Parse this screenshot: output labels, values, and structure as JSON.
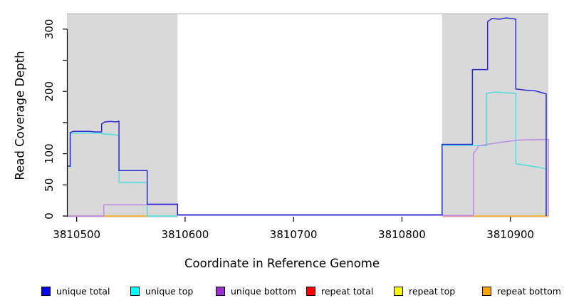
{
  "chart_data": {
    "type": "line",
    "title": "",
    "xlabel": "Coordinate in Reference Genome",
    "ylabel": "Read Coverage Depth",
    "xlim": [
      3810491,
      3810935
    ],
    "ylim": [
      0,
      325
    ],
    "grid": false,
    "x_ticks": [
      {
        "value": 3810500,
        "label": "3810500"
      },
      {
        "value": 3810600,
        "label": "3810600"
      },
      {
        "value": 3810700,
        "label": "3810700"
      },
      {
        "value": 3810800,
        "label": "3810800"
      },
      {
        "value": 3810900,
        "label": "3810900"
      }
    ],
    "y_ticks": [
      {
        "value": 0,
        "label": "0"
      },
      {
        "value": 50,
        "label": "50"
      },
      {
        "value": 100,
        "label": "100"
      },
      {
        "value": 150,
        "label": ""
      },
      {
        "value": 200,
        "label": "200"
      },
      {
        "value": 250,
        "label": ""
      },
      {
        "value": 300,
        "label": "300"
      }
    ],
    "shaded_regions": [
      {
        "x1": 3810491,
        "x2": 3810593,
        "color": "#d9d9d9"
      },
      {
        "x1": 3810837,
        "x2": 3810935,
        "color": "#d9d9d9"
      }
    ],
    "series": [
      {
        "name": "repeat total",
        "legend_color": "#FF0000",
        "line_color": "#EE7E92",
        "segments": [
          [
            [
              3810491,
              0
            ],
            [
              3810525,
              0
            ]
          ],
          [
            [
              3810838,
              0
            ],
            [
              3810865,
              0
            ]
          ]
        ]
      },
      {
        "name": "repeat top",
        "legend_color": "#FFFF00",
        "line_color": "#8FCF9B",
        "segments": [
          [
            [
              3810565,
              0
            ],
            [
              3810593,
              0
            ]
          ]
        ]
      },
      {
        "name": "repeat bottom",
        "legend_color": "#FFA500",
        "line_color": "#FFA500",
        "segments": [
          [
            [
              3810525,
              0
            ],
            [
              3810565,
              0
            ]
          ],
          [
            [
              3810865,
              0
            ],
            [
              3810935,
              0
            ]
          ]
        ]
      },
      {
        "name": "unique top",
        "legend_color": "#00FFFF",
        "line_color": "#4ADEE3",
        "segments": [
          [
            [
              3810491,
              80
            ],
            [
              3810494,
              80
            ],
            [
              3810494,
              133
            ],
            [
              3810523,
              133
            ],
            [
              3810523,
              132
            ],
            [
              3810532,
              131
            ],
            [
              3810539,
              129
            ],
            [
              3810539,
              54
            ],
            [
              3810565,
              54
            ],
            [
              3810565,
              0
            ],
            [
              3810593,
              0
            ]
          ],
          [
            [
              3810837,
              0
            ],
            [
              3810837,
              113
            ],
            [
              3810878,
              113
            ],
            [
              3810878,
              197
            ],
            [
              3810886,
              199
            ],
            [
              3810895,
              198
            ],
            [
              3810905,
              197
            ],
            [
              3810905,
              84
            ],
            [
              3810916,
              81
            ],
            [
              3810926,
              78
            ],
            [
              3810933,
              76
            ],
            [
              3810933,
              0
            ]
          ]
        ]
      },
      {
        "name": "unique bottom",
        "legend_color": "#9932CC",
        "line_color": "#BA8BE0",
        "segments": [
          [
            [
              3810491,
              0
            ],
            [
              3810525,
              0
            ],
            [
              3810525,
              18
            ],
            [
              3810593,
              18
            ],
            [
              3810593,
              1
            ],
            [
              3810866,
              1
            ],
            [
              3810866,
              100
            ],
            [
              3810871,
              113
            ],
            [
              3810890,
              118
            ],
            [
              3810908,
              122
            ],
            [
              3810935,
              123
            ],
            [
              3810935,
              0
            ]
          ]
        ]
      },
      {
        "name": "unique total",
        "legend_color": "#0000EE",
        "line_color": "#2B2BD5",
        "segments": [
          [
            [
              3810491,
              80
            ],
            [
              3810494,
              80
            ],
            [
              3810494,
              134
            ],
            [
              3810497,
              136
            ],
            [
              3810511,
              136
            ],
            [
              3810517,
              135
            ],
            [
              3810523,
              135
            ],
            [
              3810523,
              148
            ],
            [
              3810526,
              151
            ],
            [
              3810531,
              152
            ],
            [
              3810536,
              151
            ],
            [
              3810539,
              152
            ],
            [
              3810539,
              73
            ],
            [
              3810565,
              73
            ],
            [
              3810565,
              19
            ],
            [
              3810593,
              19
            ],
            [
              3810593,
              2
            ],
            [
              3810837,
              2
            ],
            [
              3810837,
              115
            ],
            [
              3810865,
              115
            ],
            [
              3810865,
              235
            ],
            [
              3810879,
              235
            ],
            [
              3810879,
              312
            ],
            [
              3810883,
              317
            ],
            [
              3810890,
              316
            ],
            [
              3810896,
              318
            ],
            [
              3810901,
              317
            ],
            [
              3810905,
              316
            ],
            [
              3810905,
              204
            ],
            [
              3810914,
              202
            ],
            [
              3810923,
              201
            ],
            [
              3810929,
              198
            ],
            [
              3810933,
              196
            ],
            [
              3810933,
              0
            ]
          ]
        ]
      }
    ]
  },
  "legend": {
    "items": [
      {
        "label": "unique total",
        "color": "#0000EE"
      },
      {
        "label": "unique top",
        "color": "#00FFFF"
      },
      {
        "label": "unique bottom",
        "color": "#9932CC"
      },
      {
        "label": "repeat total",
        "color": "#FF0000"
      },
      {
        "label": "repeat top",
        "color": "#FFFF00"
      },
      {
        "label": "repeat bottom",
        "color": "#FFA500"
      }
    ]
  }
}
